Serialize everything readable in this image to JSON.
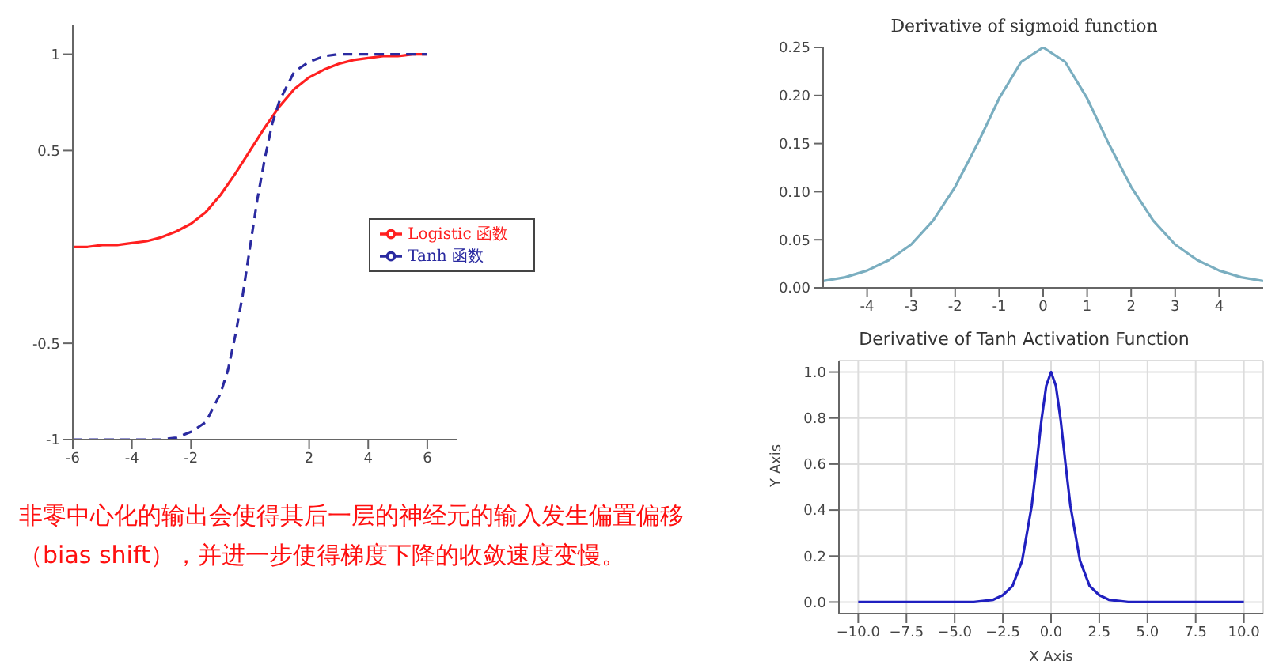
{
  "chart_data": [
    {
      "type": "line",
      "xlim": [
        -6,
        7
      ],
      "ylim": [
        -1,
        1.15
      ],
      "xticks": [
        -6,
        -4,
        -2,
        2,
        4,
        6
      ],
      "yticks": [
        -1,
        {
          "value": -0.5,
          "label": "-0.5"
        },
        0.5,
        1
      ],
      "grid": false,
      "legend": "right",
      "marker": "none",
      "annotations": [
        "非零中心化的输出会使得其后一层的神经元的输入发生偏置偏移（bias shift），并进一步使得梯度下降的收敛速度变慢。"
      ],
      "series": [
        {
          "name": "Logistic 函数",
          "color": "#ff2020",
          "line_style": "solid",
          "x": [
            -6,
            -5.5,
            -5,
            -4.5,
            -4,
            -3.5,
            -3,
            -2.5,
            -2,
            -1.5,
            -1,
            -0.5,
            0,
            0.5,
            1,
            1.5,
            2,
            2.5,
            3,
            3.5,
            4,
            4.5,
            5,
            5.5,
            6
          ],
          "values": [
            0.0,
            0.0,
            0.01,
            0.01,
            0.02,
            0.03,
            0.05,
            0.08,
            0.12,
            0.18,
            0.27,
            0.38,
            0.5,
            0.62,
            0.73,
            0.82,
            0.88,
            0.92,
            0.95,
            0.97,
            0.98,
            0.99,
            0.99,
            1.0,
            1.0
          ]
        },
        {
          "name": "Tanh 函数",
          "color": "#2a2aa0",
          "line_style": "dashed",
          "x": [
            -6,
            -5,
            -4,
            -3,
            -2.5,
            -2,
            -1.5,
            -1,
            -0.75,
            -0.5,
            -0.25,
            0,
            0.25,
            0.5,
            0.75,
            1,
            1.5,
            2,
            2.5,
            3,
            4,
            5,
            6
          ],
          "values": [
            -1.0,
            -1.0,
            -1.0,
            -1.0,
            -0.99,
            -0.96,
            -0.91,
            -0.76,
            -0.64,
            -0.46,
            -0.25,
            0,
            0.25,
            0.46,
            0.64,
            0.76,
            0.91,
            0.96,
            0.99,
            1.0,
            1.0,
            1.0,
            1.0
          ]
        }
      ]
    },
    {
      "type": "line",
      "title": "Derivative of sigmoid function",
      "xlim": [
        -5,
        5
      ],
      "ylim": [
        0,
        0.25
      ],
      "xticks": [
        -4,
        -3,
        -2,
        -1,
        0,
        1,
        2,
        3,
        4
      ],
      "yticks": [
        {
          "value": 0,
          "label": "0.00"
        },
        0.05,
        {
          "value": 0.1,
          "label": "0.10"
        },
        0.15,
        {
          "value": 0.2,
          "label": "0.20"
        },
        0.25
      ],
      "grid": false,
      "marker": "none",
      "series": [
        {
          "color": "#7aaec0",
          "x": [
            -5,
            -4.5,
            -4,
            -3.5,
            -3,
            -2.5,
            -2,
            -1.5,
            -1,
            -0.5,
            0,
            0.5,
            1,
            1.5,
            2,
            2.5,
            3,
            3.5,
            4,
            4.5,
            5
          ],
          "values": [
            0.007,
            0.011,
            0.018,
            0.029,
            0.045,
            0.07,
            0.105,
            0.149,
            0.197,
            0.235,
            0.25,
            0.235,
            0.197,
            0.149,
            0.105,
            0.07,
            0.045,
            0.029,
            0.018,
            0.011,
            0.007
          ]
        }
      ]
    },
    {
      "type": "line",
      "title": "Derivative of Tanh Activation Function",
      "xlabel": "X Axis",
      "ylabel": "Y Axis",
      "xlim": [
        -11,
        11
      ],
      "ylim": [
        -0.05,
        1.05
      ],
      "xticks": [
        {
          "value": -10,
          "label": "−10.0"
        },
        {
          "value": -7.5,
          "label": "−7.5"
        },
        {
          "value": -5,
          "label": "−5.0"
        },
        {
          "value": -2.5,
          "label": "−2.5"
        },
        {
          "value": 0,
          "label": "0.0"
        },
        {
          "value": 2.5,
          "label": "2.5"
        },
        {
          "value": 5,
          "label": "5.0"
        },
        {
          "value": 7.5,
          "label": "7.5"
        },
        {
          "value": 10,
          "label": "10.0"
        }
      ],
      "yticks": [
        {
          "value": 0,
          "label": "0.0"
        },
        {
          "value": 0.2,
          "label": "0.2"
        },
        {
          "value": 0.4,
          "label": "0.4"
        },
        {
          "value": 0.6,
          "label": "0.6"
        },
        {
          "value": 0.8,
          "label": "0.8"
        },
        {
          "value": 1,
          "label": "1.0"
        }
      ],
      "grid": true,
      "marker": "none",
      "series": [
        {
          "color": "#2020c0",
          "x": [
            -10,
            -5,
            -4,
            -3,
            -2.5,
            -2,
            -1.5,
            -1,
            -0.75,
            -0.5,
            -0.25,
            0,
            0.25,
            0.5,
            0.75,
            1,
            1.5,
            2,
            2.5,
            3,
            4,
            5,
            10
          ],
          "values": [
            0,
            0,
            0.0,
            0.01,
            0.03,
            0.07,
            0.18,
            0.42,
            0.6,
            0.79,
            0.94,
            1,
            0.94,
            0.79,
            0.6,
            0.42,
            0.18,
            0.07,
            0.03,
            0.01,
            0.0,
            0,
            0
          ]
        }
      ]
    }
  ]
}
